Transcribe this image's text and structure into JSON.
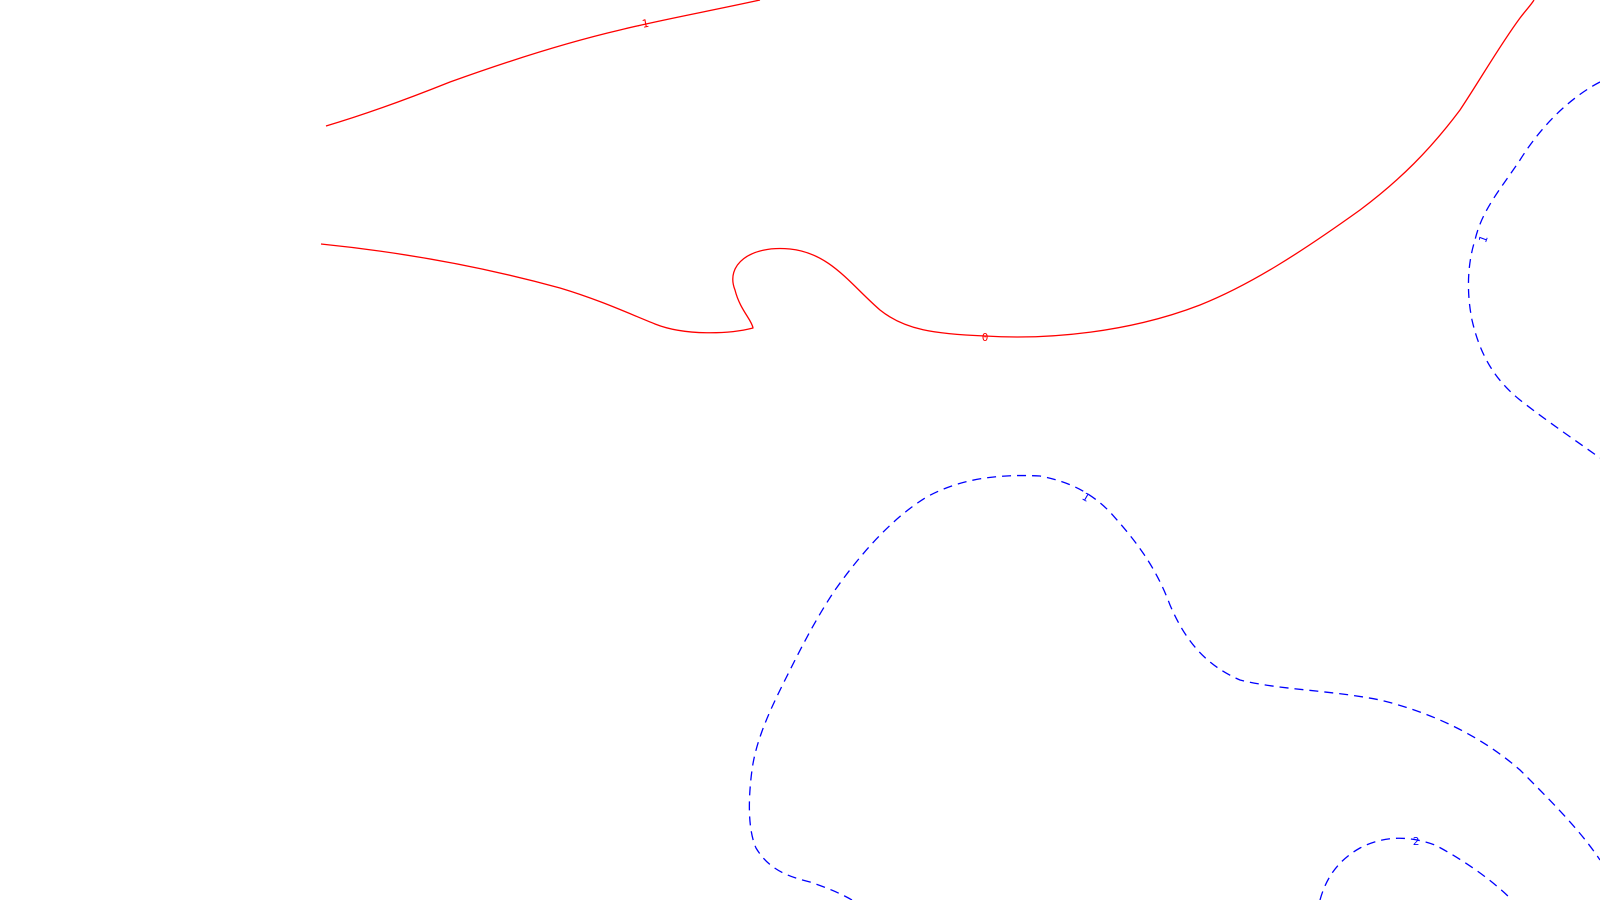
{
  "chart_data": {
    "type": "contour",
    "title": "",
    "xlabel": "",
    "ylabel": "",
    "legend": false,
    "grid": false,
    "axes_visible": false,
    "levels": [
      -1,
      0,
      1,
      2
    ],
    "styles": {
      "negative_or_zero": {
        "color": "#ff0000",
        "dash": "solid"
      },
      "positive": {
        "color": "#0000ff",
        "dash": "dashed"
      }
    },
    "contours": [
      {
        "level": -1,
        "label": "-1",
        "color": "#ff0000",
        "dashed": false
      },
      {
        "level": 0,
        "label": "0",
        "color": "#ff0000",
        "dashed": false
      },
      {
        "level": 1,
        "label": "1",
        "color": "#0000ff",
        "dashed": true
      },
      {
        "level": 1,
        "label": "1",
        "color": "#0000ff",
        "dashed": true
      },
      {
        "level": 2,
        "label": "2",
        "color": "#0000ff",
        "dashed": true
      }
    ]
  }
}
